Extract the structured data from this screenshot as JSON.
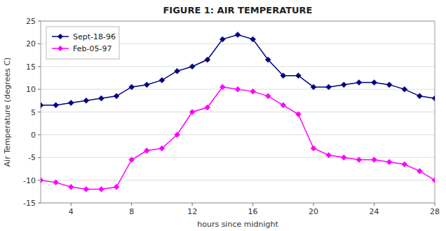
{
  "chart_data": {
    "type": "line",
    "title": "FIGURE 1:  AIR TEMPERATURE",
    "xlabel": "hours since midnight",
    "ylabel": "Air Temperature (degrees C)",
    "x": [
      2,
      3,
      4,
      5,
      6,
      7,
      8,
      9,
      10,
      11,
      12,
      13,
      14,
      15,
      16,
      17,
      18,
      19,
      20,
      21,
      22,
      23,
      24,
      25,
      26,
      27,
      28
    ],
    "series": [
      {
        "name": "Sept-18-96",
        "color": "#000080",
        "marker": "diamond",
        "values": [
          6.5,
          6.5,
          7.0,
          7.5,
          8.0,
          8.5,
          10.5,
          11.0,
          12.0,
          14.0,
          15.0,
          16.5,
          21.0,
          22.0,
          21.0,
          16.5,
          13.0,
          13.0,
          10.5,
          10.5,
          11.0,
          11.5,
          11.5,
          11.0,
          10.0,
          8.5,
          8.0
        ]
      },
      {
        "name": "Feb-05-97",
        "color": "#FF00FF",
        "marker": "diamond",
        "values": [
          -10.0,
          -10.5,
          -11.5,
          -12.0,
          -12.0,
          -11.5,
          -5.5,
          -3.5,
          -3.0,
          0.0,
          5.0,
          6.0,
          10.5,
          10.0,
          9.5,
          8.5,
          6.5,
          4.5,
          -3.0,
          -4.5,
          -5.0,
          -5.5,
          -5.5,
          -6.0,
          -6.5,
          -8.0,
          -10.0
        ]
      }
    ],
    "xlim": [
      2,
      28
    ],
    "ylim": [
      -15,
      25
    ],
    "xticks": [
      4,
      8,
      12,
      16,
      20,
      24,
      28
    ],
    "yticks": [
      -15,
      -10,
      -5,
      0,
      5,
      10,
      15,
      20,
      25
    ],
    "grid": "y",
    "legend": "upper left"
  }
}
